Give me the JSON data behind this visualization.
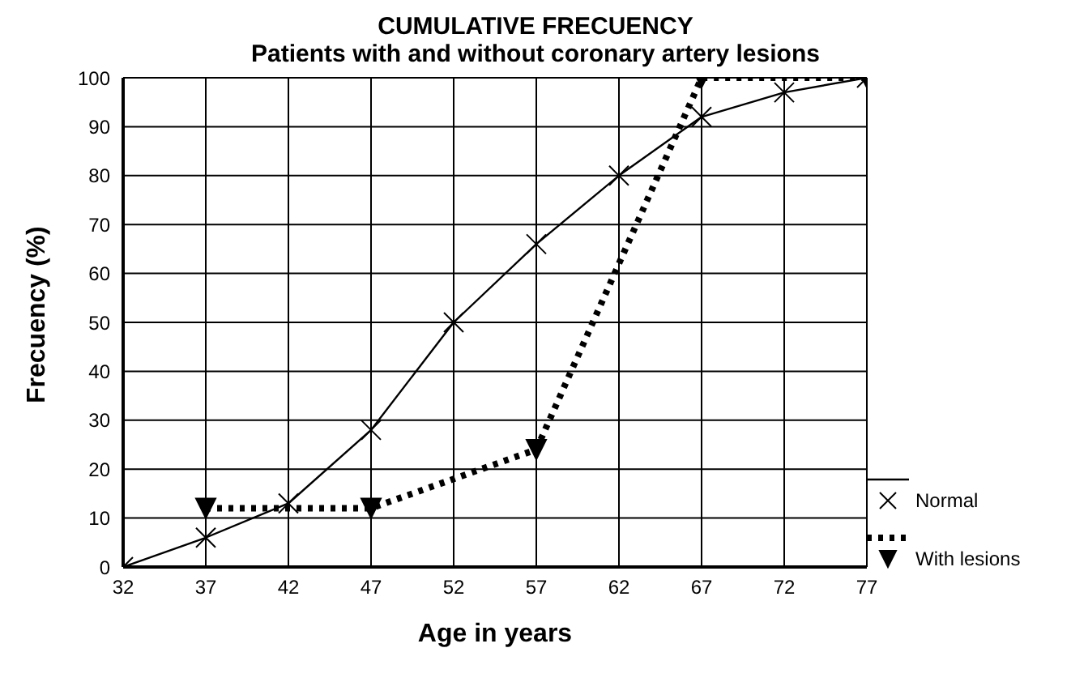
{
  "chart_data": {
    "type": "line",
    "title": "CUMULATIVE FRECUENCY",
    "subtitle": "Patients with and without coronary artery lesions",
    "xlabel": "Age in years",
    "ylabel": "Frecuency (%)",
    "x": [
      32,
      37,
      42,
      47,
      52,
      57,
      62,
      67,
      72,
      77
    ],
    "series": [
      {
        "name": "Normal",
        "color": "#000000",
        "values": [
          0,
          6,
          13,
          28,
          50,
          66,
          80,
          92,
          97,
          100
        ],
        "marker": "cross",
        "line_style": "solid"
      },
      {
        "name": "With lesions",
        "color": "#000000",
        "x": [
          37,
          47,
          57,
          67,
          77
        ],
        "values": [
          12,
          12,
          24,
          100,
          100
        ],
        "marker": "triangle",
        "line_style": "dotted"
      }
    ],
    "xlim": [
      32,
      77
    ],
    "xticks": [
      32,
      37,
      42,
      47,
      52,
      57,
      62,
      67,
      72,
      77
    ],
    "ylim": [
      0,
      100
    ],
    "yticks": [
      0,
      10,
      20,
      30,
      40,
      50,
      60,
      70,
      80,
      90,
      100
    ],
    "grid": true,
    "legend": "right"
  }
}
